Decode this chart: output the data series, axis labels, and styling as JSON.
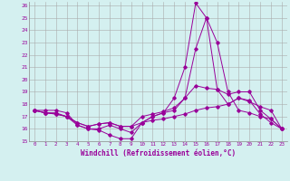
{
  "x_hours": [
    0,
    1,
    2,
    3,
    4,
    5,
    6,
    7,
    8,
    9,
    10,
    11,
    12,
    13,
    14,
    15,
    16,
    17,
    18,
    19,
    20,
    21,
    22,
    23
  ],
  "line1": [
    17.5,
    17.5,
    17.5,
    17.3,
    16.3,
    16.0,
    15.9,
    15.5,
    15.2,
    15.2,
    16.5,
    17.0,
    17.3,
    18.5,
    21.0,
    26.2,
    25.0,
    23.0,
    19.0,
    17.5,
    17.3,
    17.0,
    16.8,
    16.0
  ],
  "line2": [
    17.5,
    17.3,
    17.3,
    17.0,
    16.3,
    16.0,
    16.0,
    16.3,
    16.0,
    15.7,
    16.5,
    17.0,
    17.3,
    17.5,
    18.5,
    22.5,
    25.0,
    19.2,
    18.0,
    18.5,
    18.2,
    17.8,
    17.5,
    16.0
  ],
  "line3": [
    17.5,
    17.3,
    17.2,
    17.0,
    16.5,
    16.2,
    16.4,
    16.5,
    16.2,
    16.2,
    17.0,
    17.2,
    17.4,
    17.7,
    18.5,
    19.5,
    19.3,
    19.2,
    18.8,
    19.0,
    19.0,
    17.5,
    16.8,
    16.0
  ],
  "line4": [
    17.5,
    17.3,
    17.2,
    17.0,
    16.5,
    16.2,
    16.4,
    16.5,
    16.2,
    16.2,
    16.5,
    16.7,
    16.8,
    17.0,
    17.2,
    17.5,
    17.7,
    17.8,
    18.0,
    18.5,
    18.3,
    17.2,
    16.5,
    16.0
  ],
  "line_color": "#990099",
  "bg_color": "#d4f0f0",
  "grid_color": "#aaaaaa",
  "xlabel": "Windchill (Refroidissement éolien,°C)",
  "ylim": [
    15,
    26
  ],
  "xlim": [
    -0.5,
    23.5
  ],
  "yticks": [
    15,
    16,
    17,
    18,
    19,
    20,
    21,
    22,
    23,
    24,
    25,
    26
  ],
  "xticks": [
    0,
    1,
    2,
    3,
    4,
    5,
    6,
    7,
    8,
    9,
    10,
    11,
    12,
    13,
    14,
    15,
    16,
    17,
    18,
    19,
    20,
    21,
    22,
    23
  ]
}
